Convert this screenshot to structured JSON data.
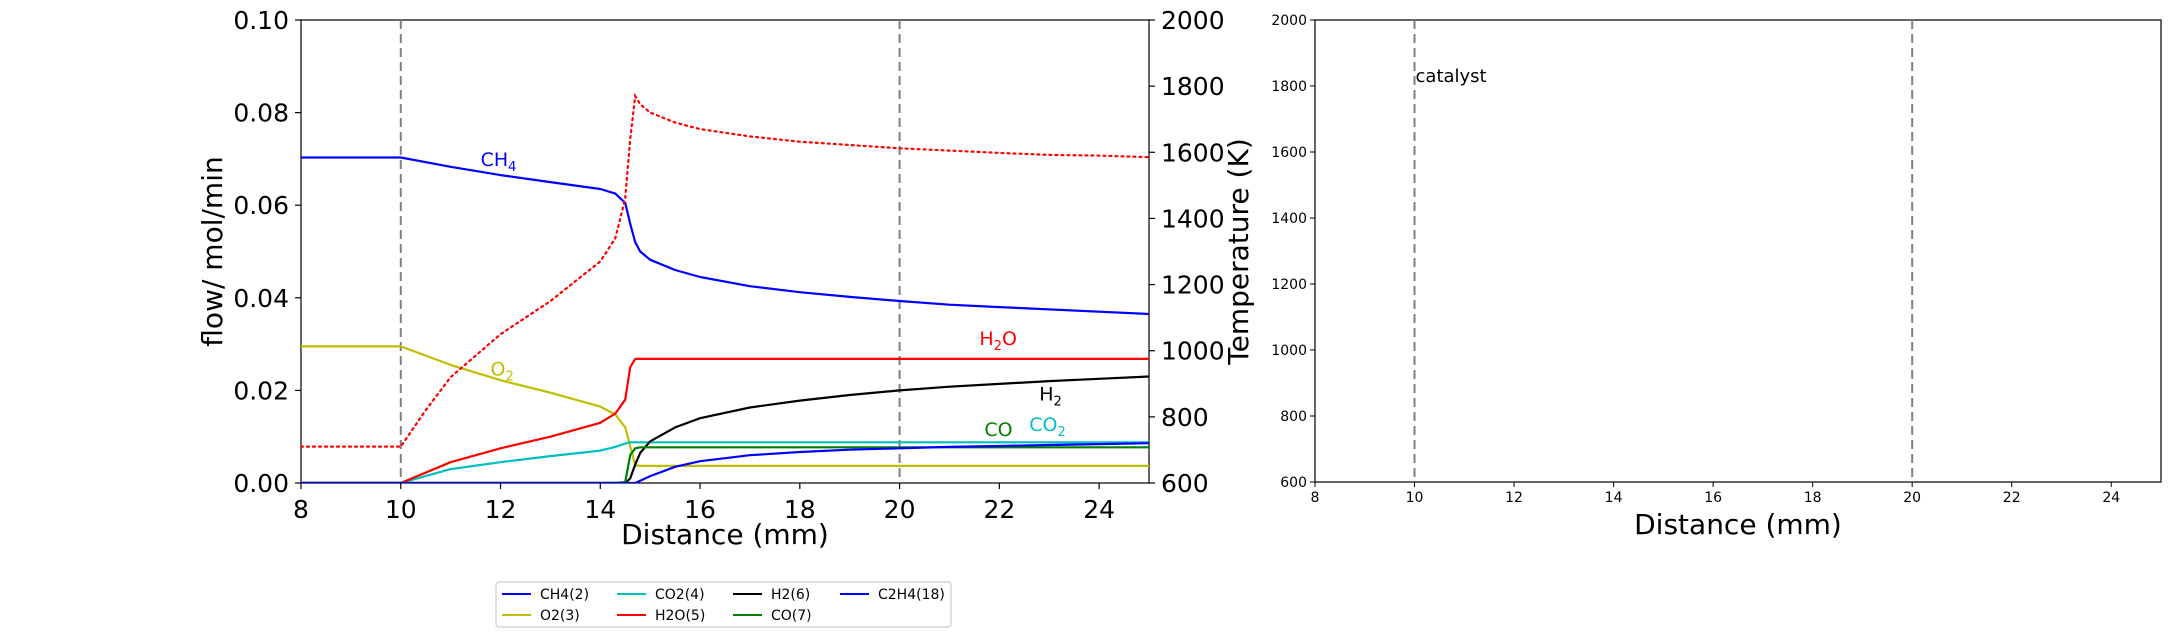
{
  "chart_data": [
    {
      "type": "line",
      "name": "flow-profile",
      "xlabel": "Distance (mm)",
      "ylabel": "flow/ mol/min",
      "y2label": "Temperature (K)",
      "xlim": [
        8,
        25
      ],
      "ylim": [
        0,
        0.1
      ],
      "y2lim": [
        600,
        2000
      ],
      "xticks": [
        "8",
        "10",
        "12",
        "14",
        "16",
        "18",
        "20",
        "22",
        "24"
      ],
      "yticks": [
        "0.00",
        "0.02",
        "0.04",
        "0.06",
        "0.08",
        "0.10"
      ],
      "y2ticks": [
        "600",
        "800",
        "1000",
        "1200",
        "1400",
        "1600",
        "1800",
        "2000"
      ],
      "vlines": [
        10,
        20
      ],
      "x": [
        8,
        10,
        11,
        12,
        13,
        14,
        14.3,
        14.5,
        14.6,
        14.7,
        14.8,
        15,
        15.5,
        16,
        17,
        18,
        19,
        20,
        21,
        22,
        23,
        24,
        25
      ],
      "series": [
        {
          "name": "CH4(2)",
          "color": "#0000ff",
          "values": [
            0.0703,
            0.0703,
            0.0683,
            0.0665,
            0.065,
            0.0635,
            0.0625,
            0.0605,
            0.056,
            0.052,
            0.05,
            0.0482,
            0.046,
            0.0445,
            0.0425,
            0.0412,
            0.0402,
            0.0393,
            0.0385,
            0.038,
            0.0375,
            0.037,
            0.0365
          ]
        },
        {
          "name": "O2(3)",
          "color": "#bfbf00",
          "values": [
            0.0295,
            0.0295,
            0.0255,
            0.0222,
            0.0195,
            0.0165,
            0.0148,
            0.012,
            0.008,
            0.0038,
            0.0037,
            0.0037,
            0.0037,
            0.0037,
            0.0037,
            0.0037,
            0.0037,
            0.0037,
            0.0037,
            0.0037,
            0.0037,
            0.0037,
            0.0037
          ]
        },
        {
          "name": "CO2(4)",
          "color": "#00bfbf",
          "values": [
            0,
            0,
            0.003,
            0.0045,
            0.0058,
            0.007,
            0.0078,
            0.0085,
            0.0088,
            0.0088,
            0.0088,
            0.0088,
            0.0088,
            0.0088,
            0.0088,
            0.0088,
            0.0088,
            0.0088,
            0.0088,
            0.0088,
            0.0088,
            0.0088,
            0.0088
          ]
        },
        {
          "name": "H2O(5)",
          "color": "#ff0000",
          "values": [
            0,
            0,
            0.0045,
            0.0075,
            0.01,
            0.013,
            0.015,
            0.018,
            0.025,
            0.0268,
            0.0268,
            0.0268,
            0.0268,
            0.0268,
            0.0268,
            0.0268,
            0.0268,
            0.0268,
            0.0268,
            0.0268,
            0.0268,
            0.0268,
            0.0268
          ]
        },
        {
          "name": "H2(6)",
          "color": "#000000",
          "values": [
            0,
            0,
            0,
            0,
            0,
            0,
            0,
            0,
            0.001,
            0.004,
            0.0065,
            0.009,
            0.012,
            0.014,
            0.0163,
            0.0178,
            0.019,
            0.02,
            0.0208,
            0.0214,
            0.022,
            0.0225,
            0.023
          ]
        },
        {
          "name": "CO(7)",
          "color": "#008000",
          "values": [
            0,
            0,
            0,
            0,
            0,
            0,
            0,
            0.0002,
            0.006,
            0.0075,
            0.0077,
            0.0077,
            0.0077,
            0.0077,
            0.0077,
            0.0077,
            0.0077,
            0.0077,
            0.0077,
            0.0077,
            0.0077,
            0.0077,
            0.0077
          ]
        },
        {
          "name": "C2H4(18)",
          "color": "#0000ff",
          "values": [
            0,
            0,
            0,
            0,
            0,
            0,
            0,
            0,
            0,
            0,
            0.0005,
            0.0015,
            0.0035,
            0.0047,
            0.006,
            0.0067,
            0.0072,
            0.0075,
            0.0078,
            0.008,
            0.0082,
            0.0084,
            0.0086
          ]
        }
      ],
      "temperature": {
        "color": "#ff0000",
        "style": "dotted",
        "x": [
          8,
          10,
          10.5,
          11,
          12,
          13,
          14,
          14.3,
          14.5,
          14.6,
          14.7,
          14.8,
          15,
          15.5,
          16,
          17,
          18,
          19,
          20,
          21,
          22,
          23,
          24,
          25
        ],
        "values": [
          710,
          710,
          820,
          920,
          1050,
          1150,
          1270,
          1340,
          1460,
          1640,
          1770,
          1745,
          1720,
          1690,
          1670,
          1648,
          1632,
          1622,
          1612,
          1605,
          1598,
          1592,
          1590,
          1585
        ]
      },
      "annotations": [
        {
          "text": "CH",
          "sub": "4",
          "color": "#0000ff",
          "x": 11.6,
          "y": 0.0685
        },
        {
          "text": "O",
          "sub": "2",
          "color": "#bfbf00",
          "x": 11.8,
          "y": 0.0232
        },
        {
          "text": "H",
          "sub": "2",
          "text2": "O",
          "color": "#ff0000",
          "x": 21.6,
          "y": 0.0298
        },
        {
          "text": "H",
          "sub": "2",
          "color": "#000000",
          "x": 22.8,
          "y": 0.0178
        },
        {
          "text": "CO",
          "color": "#008000",
          "x": 21.7,
          "y": 0.0102
        },
        {
          "text": "CO",
          "sub": "2",
          "color": "#00bfbf",
          "x": 22.6,
          "y": 0.0112
        }
      ],
      "legend": {
        "location": "below",
        "columns": [
          [
            "CH4(2)",
            "O2(3)"
          ],
          [
            "CO2(4)",
            "H2O(5)"
          ],
          [
            "H2(6)",
            "CO(7)"
          ],
          [
            "C2H4(18)"
          ]
        ]
      }
    },
    {
      "type": "line",
      "name": "empty-temperature-panel",
      "xlabel": "Distance (mm)",
      "xlim": [
        8,
        25
      ],
      "ylim": [
        600,
        2000
      ],
      "xticks": [
        "8",
        "10",
        "12",
        "14",
        "16",
        "18",
        "20",
        "22",
        "24"
      ],
      "yticks": [
        "600",
        "800",
        "1000",
        "1200",
        "1400",
        "1600",
        "1800",
        "2000"
      ],
      "vlines": [
        10,
        20
      ],
      "annotation": "catalyst"
    }
  ]
}
